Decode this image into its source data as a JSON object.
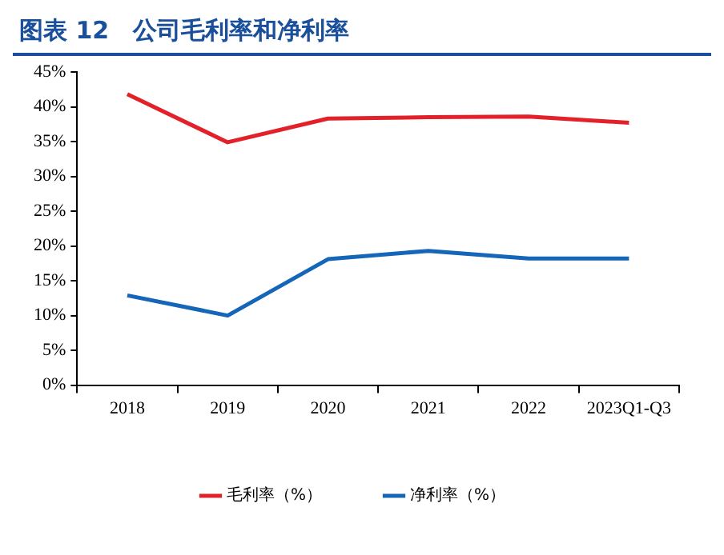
{
  "chart_data": {
    "type": "line",
    "title": "图表 12　公司毛利率和净利率",
    "categories": [
      "2018",
      "2019",
      "2020",
      "2021",
      "2022",
      "2023Q1-Q3"
    ],
    "series": [
      {
        "name": "毛利率（%）",
        "color": "#e3212b",
        "values": [
          41.8,
          34.9,
          38.3,
          38.5,
          38.6,
          37.7
        ]
      },
      {
        "name": "净利率（%）",
        "color": "#1565b8",
        "values": [
          12.9,
          10.0,
          18.1,
          19.3,
          18.2,
          18.2
        ]
      }
    ],
    "ylim": [
      0,
      45
    ],
    "yticks": [
      {
        "value": 0,
        "label": "0%"
      },
      {
        "value": 5,
        "label": "5%"
      },
      {
        "value": 10,
        "label": "10%"
      },
      {
        "value": 15,
        "label": "15%"
      },
      {
        "value": 20,
        "label": "20%"
      },
      {
        "value": 25,
        "label": "25%"
      },
      {
        "value": 30,
        "label": "30%"
      },
      {
        "value": 35,
        "label": "35%"
      },
      {
        "value": 40,
        "label": "40%"
      },
      {
        "value": 45,
        "label": "45%"
      }
    ],
    "grid": false,
    "legend": "bottom",
    "marker": "none",
    "line_style": "solid"
  }
}
